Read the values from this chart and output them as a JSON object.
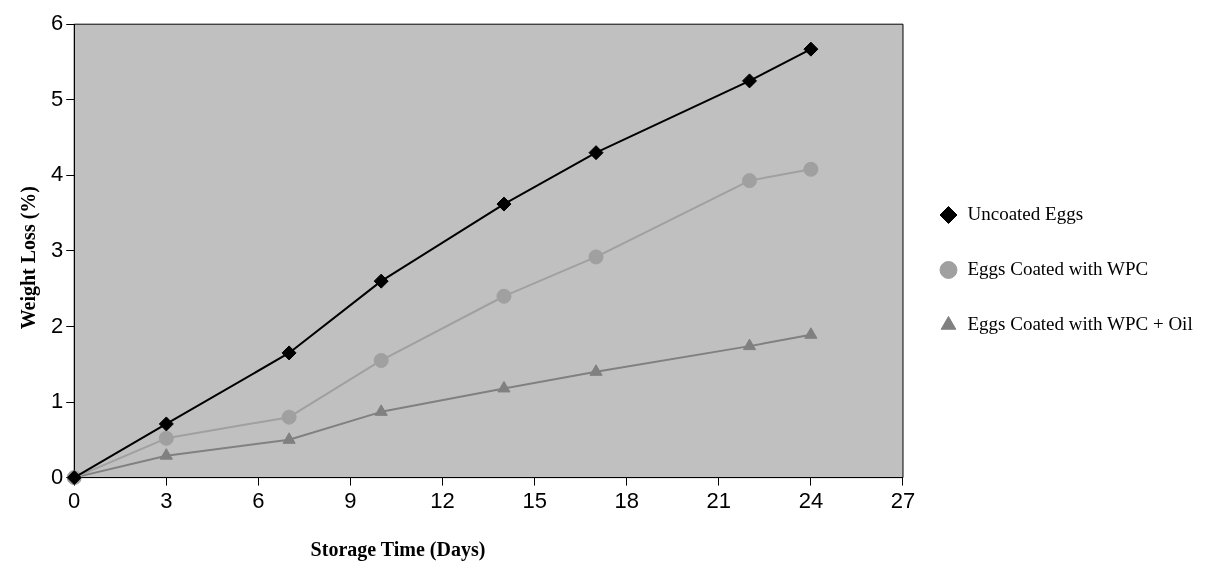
{
  "chart_data": {
    "type": "line",
    "xlabel": "Storage Time (Days)",
    "ylabel": "Weight Loss (%)",
    "x": [
      0,
      3,
      7,
      10,
      14,
      17,
      22,
      24
    ],
    "series": [
      {
        "name": "Uncoated Eggs",
        "color": "#000000",
        "marker": "diamond",
        "values": [
          0,
          0.71,
          1.65,
          2.6,
          3.62,
          4.3,
          5.25,
          5.67
        ]
      },
      {
        "name": "Eggs Coated with WPC",
        "color": "#a0a0a0",
        "marker": "circle",
        "values": [
          0,
          0.52,
          0.8,
          1.55,
          2.4,
          2.92,
          3.93,
          4.08
        ]
      },
      {
        "name": "Eggs Coated with WPC + Oil",
        "color": "#808080",
        "marker": "triangle",
        "values": [
          0,
          0.29,
          0.5,
          0.87,
          1.18,
          1.4,
          1.74,
          1.89
        ]
      }
    ],
    "xlim": [
      0,
      27
    ],
    "xticks": [
      0,
      3,
      6,
      9,
      12,
      15,
      18,
      21,
      24,
      27
    ],
    "ylim": [
      0,
      6
    ],
    "yticks": [
      0,
      1,
      2,
      3,
      4,
      5,
      6
    ],
    "grid": false,
    "legend": "right"
  }
}
